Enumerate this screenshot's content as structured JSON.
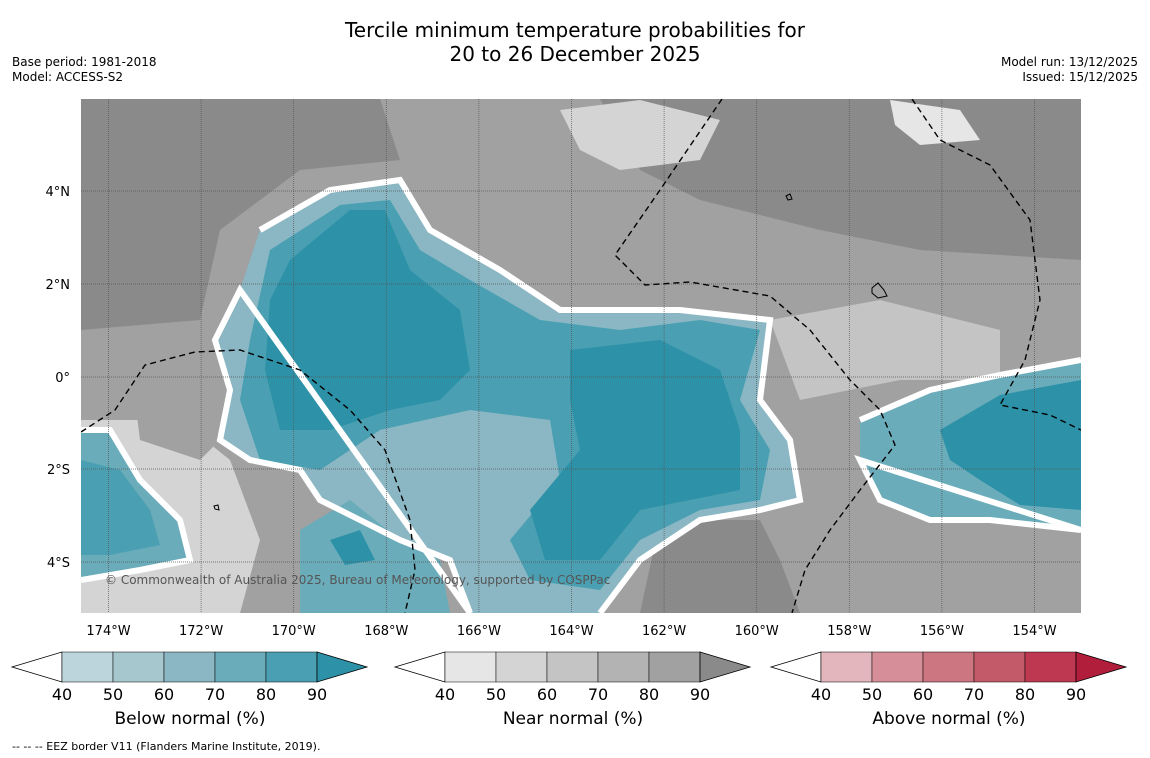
{
  "title": {
    "line1": "Tercile minimum temperature probabilities for",
    "line2": "20 to 26 December 2025"
  },
  "meta_left": {
    "base_period": "Base period: 1981-2018",
    "model": "Model: ACCESS-S2"
  },
  "meta_right": {
    "model_run": "Model run: 13/12/2025",
    "issued": "Issued: 15/12/2025"
  },
  "map": {
    "lat_labels": [
      "4°N",
      "2°N",
      "0°",
      "2°S",
      "4°S"
    ],
    "lon_labels": [
      "174°W",
      "172°W",
      "170°W",
      "168°W",
      "166°W",
      "164°W",
      "162°W",
      "160°W",
      "158°W",
      "156°W",
      "154°W"
    ],
    "copyright": "© Commonwealth of Australia 2025, Bureau of Meteorology, supported by COSPPac"
  },
  "colorbars": [
    {
      "label": "Below normal (%)",
      "ticks": [
        "40",
        "50",
        "60",
        "70",
        "80",
        "90"
      ],
      "colors": [
        "#ffffff",
        "#bcd5dc",
        "#a6c7cd",
        "#8ab7c3",
        "#6aacba",
        "#4aa0b2",
        "#2d91a7"
      ]
    },
    {
      "label": "Near normal (%)",
      "ticks": [
        "40",
        "50",
        "60",
        "70",
        "80",
        "90"
      ],
      "colors": [
        "#ffffff",
        "#e6e6e6",
        "#d4d4d4",
        "#c4c4c4",
        "#b3b3b3",
        "#a1a1a1",
        "#8a8a8a"
      ]
    },
    {
      "label": "Above normal (%)",
      "ticks": [
        "40",
        "50",
        "60",
        "70",
        "80",
        "90"
      ],
      "colors": [
        "#ffffff",
        "#e3b5bc",
        "#d68f99",
        "#cc7681",
        "#c35a69",
        "#bd3850",
        "#b11e3c"
      ]
    }
  ],
  "footnote": "--  --  -- EEZ border V11 (Flanders Marine Institute, 2019)."
}
